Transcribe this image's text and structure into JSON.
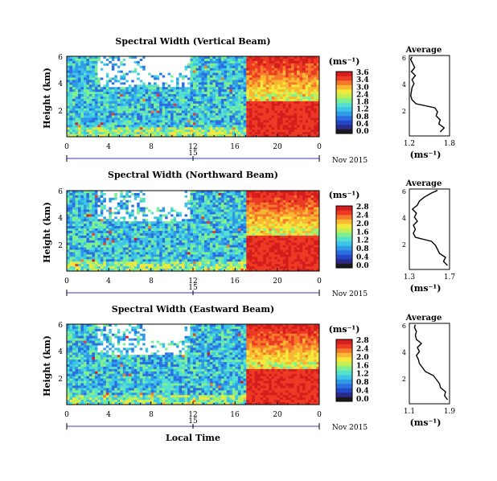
{
  "chart_data": [
    {
      "type": "heatmap",
      "title": "Spectral Width (Vertical Beam)",
      "ylabel": "Height (km)",
      "yticks": [
        "6",
        "4",
        "2"
      ],
      "ylim": [
        0,
        6
      ],
      "xticks": [
        "0",
        "4",
        "8",
        "12",
        "16",
        "20",
        "0"
      ],
      "xlim": [
        0,
        24
      ],
      "date_label": "15",
      "month_label": "Nov 2015",
      "colorbar": {
        "unit": "(ms⁻¹)",
        "ticks": [
          "3.6",
          "3.4",
          "3.0",
          "2.4",
          "1.8",
          "1.2",
          "0.8",
          "0.4",
          "0.0"
        ]
      },
      "average": {
        "title": "Average",
        "xlabel": "(ms⁻¹)",
        "xticks": [
          "1.2",
          "1.8"
        ],
        "xlim": [
          1.2,
          1.8
        ],
        "yticks": [
          "6",
          "4",
          "2"
        ],
        "profile_height": [
          0.3,
          0.6,
          0.9,
          1.2,
          1.5,
          1.8,
          2.1,
          2.4,
          2.7,
          3.0,
          3.3,
          3.6,
          3.9,
          4.2,
          4.5,
          4.8,
          5.1,
          5.4,
          5.7,
          5.9
        ],
        "profile_value": [
          1.66,
          1.72,
          1.64,
          1.66,
          1.6,
          1.62,
          1.58,
          1.3,
          1.24,
          1.22,
          1.23,
          1.24,
          1.27,
          1.24,
          1.29,
          1.23,
          1.28,
          1.25,
          1.22,
          1.24
        ]
      }
    },
    {
      "type": "heatmap",
      "title": "Spectral Width (Northward Beam)",
      "ylabel": "Height (km)",
      "yticks": [
        "6",
        "4",
        "2"
      ],
      "ylim": [
        0,
        6
      ],
      "xticks": [
        "0",
        "4",
        "8",
        "12",
        "16",
        "20",
        "0"
      ],
      "xlim": [
        0,
        24
      ],
      "date_label": "15",
      "month_label": "Nov 2015",
      "colorbar": {
        "unit": "(ms⁻¹)",
        "ticks": [
          "2.8",
          "2.4",
          "2.0",
          "1.6",
          "1.2",
          "0.8",
          "0.4",
          "0.0"
        ]
      },
      "average": {
        "title": "Average",
        "xlabel": "(ms⁻¹)",
        "xticks": [
          "1.3",
          "1.7"
        ],
        "xlim": [
          1.3,
          1.7
        ],
        "yticks": [
          "6",
          "4",
          "2"
        ],
        "profile_height": [
          0.3,
          0.6,
          0.9,
          1.2,
          1.5,
          1.8,
          2.1,
          2.4,
          2.7,
          3.0,
          3.3,
          3.6,
          3.9,
          4.2,
          4.5,
          4.8,
          5.1,
          5.4,
          5.7,
          5.9
        ],
        "profile_value": [
          1.68,
          1.64,
          1.66,
          1.6,
          1.58,
          1.56,
          1.52,
          1.36,
          1.34,
          1.36,
          1.34,
          1.38,
          1.35,
          1.37,
          1.33,
          1.38,
          1.4,
          1.45,
          1.52,
          1.58
        ]
      }
    },
    {
      "type": "heatmap",
      "title": "Spectral Width (Eastward Beam)",
      "ylabel": "Height (km)",
      "yticks": [
        "6",
        "4",
        "2"
      ],
      "ylim": [
        0,
        6
      ],
      "xticks": [
        "0",
        "4",
        "8",
        "12",
        "16",
        "20",
        "0"
      ],
      "xlim": [
        0,
        24
      ],
      "date_label": "15",
      "month_label": "Nov 2015",
      "xlabel": "Local Time",
      "colorbar": {
        "unit": "(ms⁻¹)",
        "ticks": [
          "2.8",
          "2.4",
          "2.0",
          "1.6",
          "1.2",
          "0.8",
          "0.4",
          "0.0"
        ]
      },
      "average": {
        "title": "Average",
        "xlabel": "(ms⁻¹)",
        "xticks": [
          "1.1",
          "1.9"
        ],
        "xlim": [
          1.1,
          1.9
        ],
        "yticks": [
          "6",
          "4",
          "2"
        ],
        "profile_height": [
          0.3,
          0.6,
          0.9,
          1.2,
          1.5,
          1.8,
          2.1,
          2.4,
          2.7,
          3.0,
          3.3,
          3.6,
          3.9,
          4.2,
          4.5,
          4.8,
          5.1,
          5.4,
          5.7,
          5.9
        ],
        "profile_value": [
          1.86,
          1.8,
          1.82,
          1.72,
          1.7,
          1.64,
          1.58,
          1.42,
          1.36,
          1.3,
          1.28,
          1.24,
          1.3,
          1.26,
          1.34,
          1.24,
          1.22,
          1.24,
          1.2,
          1.22
        ]
      }
    }
  ],
  "colors": {
    "colormap": [
      "#1a1a1a",
      "#2a2a8a",
      "#2447c8",
      "#2a6ee0",
      "#2f9ae6",
      "#3cc3e8",
      "#56e0cf",
      "#7ff08f",
      "#c4ee55",
      "#f4e83c",
      "#f9b832",
      "#f67a2c",
      "#ec3a24",
      "#d51d1d"
    ]
  }
}
